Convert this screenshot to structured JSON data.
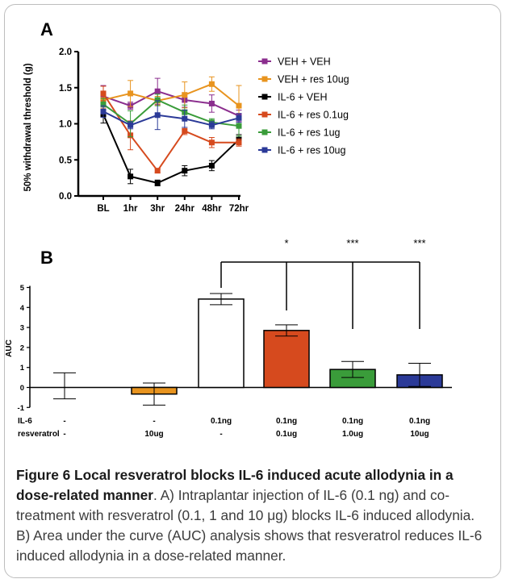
{
  "chart_data": [
    {
      "panel": "A",
      "type": "line",
      "ylabel": "50% withdrawal threshold (g)",
      "categories": [
        "BL",
        "1hr",
        "3hr",
        "24hr",
        "48hr",
        "72hr"
      ],
      "ylim": [
        0,
        2.0
      ],
      "yticks": [
        "0.0",
        "0.5",
        "1.0",
        "1.5",
        "2.0"
      ],
      "legend_position": "right",
      "series": [
        {
          "name": "VEH + VEH",
          "color": "#8b2e8e",
          "marker": "square",
          "values": [
            1.38,
            1.25,
            1.45,
            1.33,
            1.28,
            1.11
          ],
          "errors": [
            0.15,
            0.05,
            0.18,
            0.1,
            0.12,
            0.08
          ]
        },
        {
          "name": "VEH + res 10ug",
          "color": "#e8941f",
          "marker": "square",
          "values": [
            1.33,
            1.42,
            1.32,
            1.4,
            1.55,
            1.25
          ],
          "errors": [
            0.12,
            0.18,
            0.06,
            0.18,
            0.1,
            0.28
          ]
        },
        {
          "name": "IL-6 + VEH",
          "color": "#000000",
          "marker": "square",
          "values": [
            1.13,
            0.27,
            0.18,
            0.35,
            0.42,
            0.78
          ],
          "errors": [
            0.12,
            0.1,
            0.04,
            0.07,
            0.07,
            0.07
          ]
        },
        {
          "name": "IL-6 + res 0.1ug",
          "color": "#d64a1e",
          "marker": "square",
          "values": [
            1.42,
            0.84,
            0.35,
            0.9,
            0.74,
            0.74
          ],
          "errors": [
            0.1,
            0.2,
            0.03,
            0.05,
            0.07,
            0.05
          ]
        },
        {
          "name": "IL-6 + res 1ug",
          "color": "#3a9c3a",
          "marker": "square",
          "values": [
            1.27,
            1.0,
            1.33,
            1.16,
            1.02,
            0.97
          ],
          "errors": [
            0.08,
            0.18,
            0.08,
            0.1,
            0.05,
            0.14
          ]
        },
        {
          "name": "IL-6 + res 10ug",
          "color": "#2b3a98",
          "marker": "square",
          "values": [
            1.17,
            0.98,
            1.12,
            1.07,
            0.98,
            1.08
          ],
          "errors": [
            0.08,
            0.05,
            0.2,
            0.12,
            0.05,
            0.06
          ]
        }
      ]
    },
    {
      "panel": "B",
      "type": "bar",
      "ylabel": "AUC",
      "ylim": [
        -1,
        5
      ],
      "yticks": [
        "-1",
        "0",
        "1",
        "2",
        "3",
        "4",
        "5"
      ],
      "row_labels": [
        "IL-6",
        "resveratrol"
      ],
      "bars": [
        {
          "value": 0.08,
          "error": 0.65,
          "fill": "#ffffff",
          "il6": "-",
          "res": "-"
        },
        {
          "value": -0.33,
          "error": 0.55,
          "fill": "#e8941f",
          "il6": "-",
          "res": "10ug"
        },
        {
          "value": 4.42,
          "error": 0.28,
          "fill": "#ffffff",
          "il6": "0.1ng",
          "res": "-"
        },
        {
          "value": 2.85,
          "error": 0.28,
          "fill": "#d64a1e",
          "il6": "0.1ng",
          "res": "0.1ug"
        },
        {
          "value": 0.9,
          "error": 0.4,
          "fill": "#3a9c3a",
          "il6": "0.1ng",
          "res": "1.0ug"
        },
        {
          "value": 0.63,
          "error": 0.58,
          "fill": "#2b3a98",
          "il6": "0.1ng",
          "res": "10ug"
        }
      ],
      "significance": {
        "reference_bar": 2,
        "marks": [
          {
            "bar": 3,
            "label": "*"
          },
          {
            "bar": 4,
            "label": "***"
          },
          {
            "bar": 5,
            "label": "***"
          }
        ]
      }
    }
  ],
  "caption": {
    "bold": "Figure 6 Local resveratrol blocks IL-6 induced acute allodynia in a dose-related manner",
    "text": ". A) Intraplantar injection of IL-6 (0.1 ng) and co-treatment with resveratrol (0.1, 1 and 10 μg) blocks IL-6 induced allodynia. B) Area under the curve (AUC) analysis shows that resveratrol reduces IL-6 induced allodynia in a dose-related manner."
  }
}
